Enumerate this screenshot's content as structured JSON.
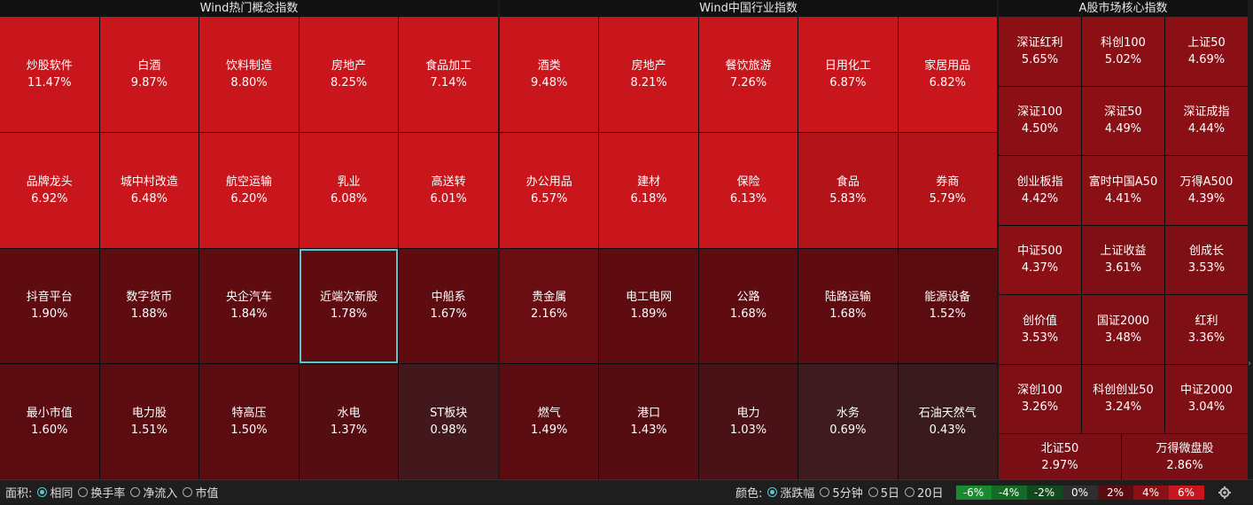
{
  "panels": [
    {
      "title": "Wind热门概念指数",
      "rows": [
        [
          {
            "name": "炒股软件",
            "pct": "11.47%",
            "c": "#c8161c"
          },
          {
            "name": "白酒",
            "pct": "9.87%",
            "c": "#c8161c"
          },
          {
            "name": "饮料制造",
            "pct": "8.80%",
            "c": "#c8161c"
          },
          {
            "name": "房地产",
            "pct": "8.25%",
            "c": "#c8161c"
          },
          {
            "name": "食品加工",
            "pct": "7.14%",
            "c": "#c8161c"
          }
        ],
        [
          {
            "name": "品牌龙头",
            "pct": "6.92%",
            "c": "#c8161c"
          },
          {
            "name": "城中村改造",
            "pct": "6.48%",
            "c": "#c8161c"
          },
          {
            "name": "航空运输",
            "pct": "6.20%",
            "c": "#c8161c"
          },
          {
            "name": "乳业",
            "pct": "6.08%",
            "c": "#c8161c"
          },
          {
            "name": "高送转",
            "pct": "6.01%",
            "c": "#c8161c"
          }
        ],
        [
          {
            "name": "抖音平台",
            "pct": "1.90%",
            "c": "#5e0c10"
          },
          {
            "name": "数字货币",
            "pct": "1.88%",
            "c": "#5e0c10"
          },
          {
            "name": "央企汽车",
            "pct": "1.84%",
            "c": "#5e0c10"
          },
          {
            "name": "近端次新股",
            "pct": "1.78%",
            "c": "#5e0c10",
            "sel": true
          },
          {
            "name": "中船系",
            "pct": "1.67%",
            "c": "#5e0c10"
          }
        ],
        [
          {
            "name": "最小市值",
            "pct": "1.60%",
            "c": "#5a0c10"
          },
          {
            "name": "电力股",
            "pct": "1.51%",
            "c": "#5a0c10"
          },
          {
            "name": "特高压",
            "pct": "1.50%",
            "c": "#5a0c10"
          },
          {
            "name": "水电",
            "pct": "1.37%",
            "c": "#540d11"
          },
          {
            "name": "ST板块",
            "pct": "0.98%",
            "c": "#42181c"
          }
        ]
      ]
    },
    {
      "title": "Wind中国行业指数",
      "rows": [
        [
          {
            "name": "酒类",
            "pct": "9.48%",
            "c": "#c8161c"
          },
          {
            "name": "房地产",
            "pct": "8.21%",
            "c": "#c8161c"
          },
          {
            "name": "餐饮旅游",
            "pct": "7.26%",
            "c": "#c8161c"
          },
          {
            "name": "日用化工",
            "pct": "6.87%",
            "c": "#c8161c"
          },
          {
            "name": "家居用品",
            "pct": "6.82%",
            "c": "#c8161c"
          }
        ],
        [
          {
            "name": "办公用品",
            "pct": "6.57%",
            "c": "#c8161c"
          },
          {
            "name": "建材",
            "pct": "6.18%",
            "c": "#c8161c"
          },
          {
            "name": "保险",
            "pct": "6.13%",
            "c": "#c8161c"
          },
          {
            "name": "食品",
            "pct": "5.83%",
            "c": "#b3141a"
          },
          {
            "name": "券商",
            "pct": "5.79%",
            "c": "#b3141a"
          }
        ],
        [
          {
            "name": "贵金属",
            "pct": "2.16%",
            "c": "#6a0d12"
          },
          {
            "name": "电工电网",
            "pct": "1.89%",
            "c": "#5e0c10"
          },
          {
            "name": "公路",
            "pct": "1.68%",
            "c": "#5e0c10"
          },
          {
            "name": "陆路运输",
            "pct": "1.68%",
            "c": "#5e0c10"
          },
          {
            "name": "能源设备",
            "pct": "1.52%",
            "c": "#5a0c10"
          }
        ],
        [
          {
            "name": "燃气",
            "pct": "1.49%",
            "c": "#5a0c10"
          },
          {
            "name": "港口",
            "pct": "1.43%",
            "c": "#560d11"
          },
          {
            "name": "电力",
            "pct": "1.03%",
            "c": "#4a1216"
          },
          {
            "name": "水务",
            "pct": "0.69%",
            "c": "#3f1a1e"
          },
          {
            "name": "石油天然气",
            "pct": "0.43%",
            "c": "#391b1e"
          }
        ]
      ]
    }
  ],
  "core": {
    "title": "A股市场核心指数",
    "rows": [
      [
        {
          "name": "深证红利",
          "pct": "5.65%",
          "c": "#8a1016"
        },
        {
          "name": "科创100",
          "pct": "5.02%",
          "c": "#8a1016"
        },
        {
          "name": "上证50",
          "pct": "4.69%",
          "c": "#8a1016"
        }
      ],
      [
        {
          "name": "深证100",
          "pct": "4.50%",
          "c": "#8a1016"
        },
        {
          "name": "深证50",
          "pct": "4.49%",
          "c": "#8a1016"
        },
        {
          "name": "深证成指",
          "pct": "4.44%",
          "c": "#8a1016"
        }
      ],
      [
        {
          "name": "创业板指",
          "pct": "4.42%",
          "c": "#8a1016"
        },
        {
          "name": "富时中国A50",
          "pct": "4.41%",
          "c": "#8a1016"
        },
        {
          "name": "万得A500",
          "pct": "4.39%",
          "c": "#8a1016"
        }
      ],
      [
        {
          "name": "中证500",
          "pct": "4.37%",
          "c": "#8a1016"
        },
        {
          "name": "上证收益",
          "pct": "3.61%",
          "c": "#7e1015"
        },
        {
          "name": "创成长",
          "pct": "3.53%",
          "c": "#7e1015"
        }
      ],
      [
        {
          "name": "创价值",
          "pct": "3.53%",
          "c": "#7e1015"
        },
        {
          "name": "国证2000",
          "pct": "3.48%",
          "c": "#7e1015"
        },
        {
          "name": "红利",
          "pct": "3.36%",
          "c": "#7e1015"
        }
      ],
      [
        {
          "name": "深创100",
          "pct": "3.26%",
          "c": "#7e1015"
        },
        {
          "name": "科创创业50",
          "pct": "3.24%",
          "c": "#7e1015"
        },
        {
          "name": "中证2000",
          "pct": "3.04%",
          "c": "#7e1015"
        }
      ]
    ],
    "last": [
      {
        "name": "北证50",
        "pct": "2.97%",
        "c": "#7a1015"
      },
      {
        "name": "万得微盘股",
        "pct": "2.86%",
        "c": "#7a1015"
      }
    ]
  },
  "footer": {
    "area_label": "面积:",
    "area_options": [
      "相同",
      "换手率",
      "净流入",
      "市值"
    ],
    "color_label": "颜色:",
    "color_options": [
      "涨跌幅",
      "5分钟",
      "5日",
      "20日"
    ],
    "legend": [
      {
        "label": "-6%",
        "c": "#1a8a30"
      },
      {
        "label": "-4%",
        "c": "#156a26"
      },
      {
        "label": "-2%",
        "c": "#124a1d"
      },
      {
        "label": "0%",
        "c": "#2e2e2e"
      },
      {
        "label": "2%",
        "c": "#5a0c10"
      },
      {
        "label": "4%",
        "c": "#8a1016"
      },
      {
        "label": "6%",
        "c": "#c8161c"
      }
    ]
  }
}
